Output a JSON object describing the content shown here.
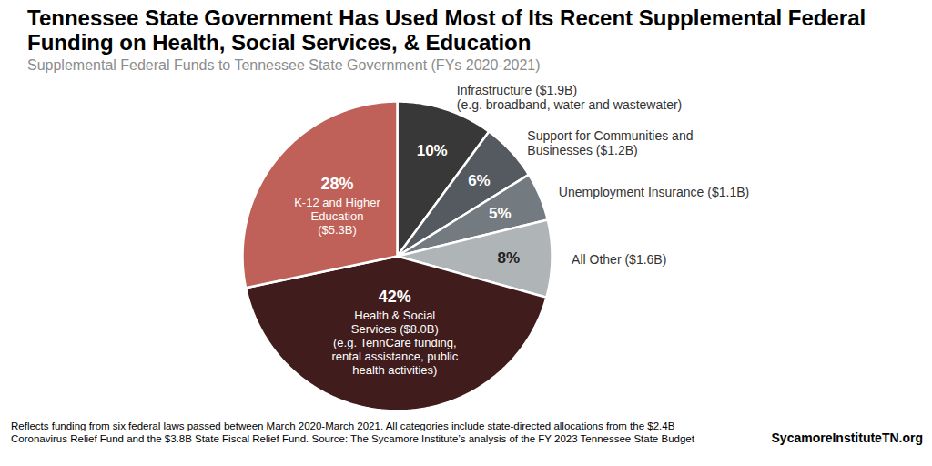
{
  "chart_data": {
    "type": "pie",
    "title": "Tennessee State Government Has Used Most of Its Recent Supplemental Federal Funding on Health, Social Services, & Education",
    "subtitle": "Supplemental Federal Funds to Tennessee State Government (FYs 2020-2021)",
    "categories": [
      "Infrastructure ($1.9B)",
      "Support for Communities and Businesses ($1.2B)",
      "Unemployment Insurance ($1.1B)",
      "All Other ($1.6B)",
      "Health & Social Services ($8.0B)",
      "K-12 and Higher Education ($5.3B)"
    ],
    "notes": [
      "(e.g. broadband, water and wastewater)",
      null,
      null,
      null,
      "(e.g. TennCare funding, rental assistance, public health activities)",
      null
    ],
    "values": [
      10,
      6,
      5,
      8,
      42,
      28
    ],
    "value_labels": [
      "10%",
      "6%",
      "5%",
      "8%",
      "42%",
      "28%"
    ],
    "colors": [
      "#383838",
      "#545a5f",
      "#737a80",
      "#afb4b7",
      "#401c1c",
      "#bf6158"
    ],
    "data_labels": true,
    "caption": "Reflects funding from six federal laws passed between March 2020-March 2021. All categories include state-directed allocations from the $2.4B Coronavirus Relief Fund and the $3.8B State Fiscal Relief Fund. Source: The Sycamore Institute’s analysis of the FY 2023 Tennessee State Budget",
    "source": "SycamoreInstituteTN.org"
  }
}
